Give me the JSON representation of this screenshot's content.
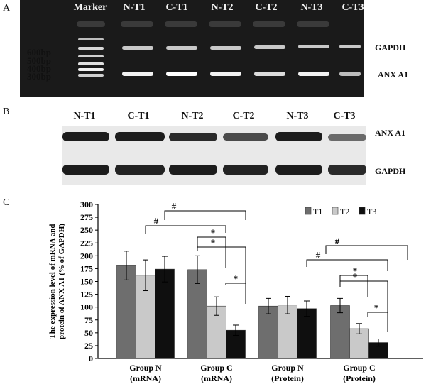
{
  "panels": {
    "a": {
      "letter": "A",
      "lanes": [
        "Marker",
        "N-T1",
        "C-T1",
        "N-T2",
        "C-T2",
        "N-T3",
        "C-T3"
      ],
      "bp_markers": [
        "600bp",
        "500bp",
        "400bp",
        "300bp"
      ],
      "right_labels": [
        "GAPDH",
        "ANX A1"
      ]
    },
    "b": {
      "letter": "B",
      "lanes": [
        "N-T1",
        "C-T1",
        "N-T2",
        "C-T2",
        "N-T3",
        "C-T3"
      ],
      "right_labels": [
        "ANX A1",
        "GAPDH"
      ]
    },
    "c": {
      "letter": "C"
    }
  },
  "chart_data": {
    "type": "bar",
    "ylabel": "The expression level of mRNA and protein of ANX A1  (% of GAPDH)",
    "ylim": [
      0,
      300
    ],
    "yticks": [
      0,
      25,
      50,
      75,
      100,
      125,
      150,
      175,
      200,
      225,
      250,
      275,
      300
    ],
    "categories": [
      [
        "Group N",
        "(mRNA)"
      ],
      [
        "Group C",
        "(mRNA)"
      ],
      [
        "Group N",
        "(Protein)"
      ],
      [
        "Group C",
        "(Protein)"
      ]
    ],
    "series": [
      {
        "name": "T1",
        "color": "#6e6e6e",
        "values": [
          181,
          173,
          102,
          103
        ],
        "errors": [
          28,
          27,
          15,
          14
        ]
      },
      {
        "name": "T2",
        "color": "#c9c9c9",
        "values": [
          162,
          102,
          104,
          58
        ],
        "errors": [
          30,
          18,
          17,
          10
        ]
      },
      {
        "name": "T3",
        "color": "#0f0f0f",
        "values": [
          174,
          55,
          97,
          31
        ],
        "errors": [
          25,
          10,
          15,
          7
        ]
      }
    ],
    "legend": "top-right",
    "significance_mark": "#",
    "significance_mark_2": "*"
  }
}
